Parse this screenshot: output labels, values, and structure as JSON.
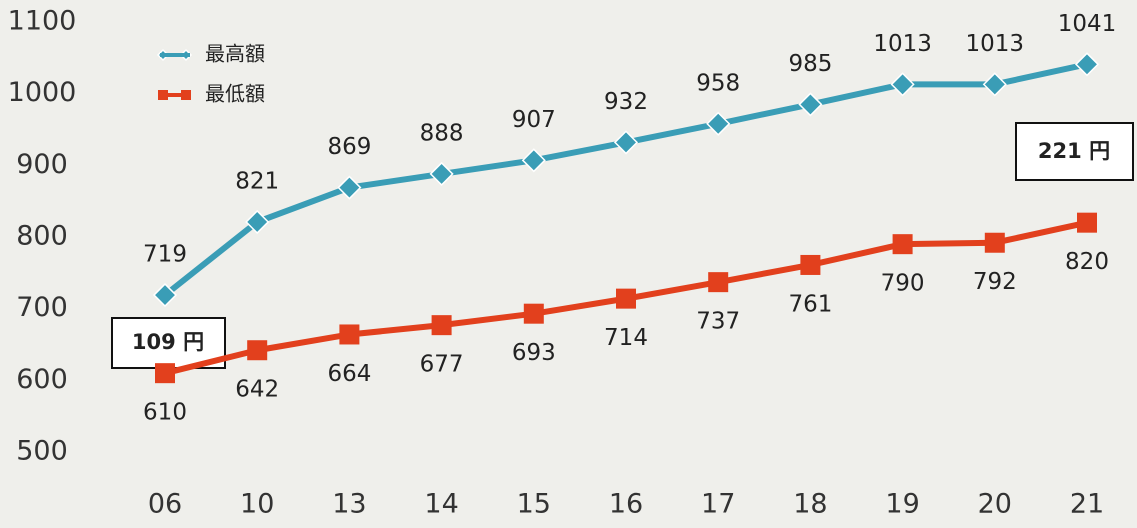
{
  "chart_data": {
    "type": "line",
    "categories": [
      "06",
      "10",
      "13",
      "14",
      "15",
      "16",
      "17",
      "18",
      "19",
      "20",
      "21"
    ],
    "series": [
      {
        "name": "最高額",
        "color": "#3a9db6",
        "marker": "diamond",
        "values": [
          719,
          821,
          869,
          888,
          907,
          932,
          958,
          985,
          1013,
          1013,
          1041
        ]
      },
      {
        "name": "最低額",
        "color": "#e2401d",
        "marker": "square",
        "values": [
          610,
          642,
          664,
          677,
          693,
          714,
          737,
          761,
          790,
          792,
          820
        ]
      }
    ],
    "ylim": [
      500,
      1100
    ],
    "yticks": [
      500,
      600,
      700,
      800,
      900,
      1000,
      1100
    ],
    "annotations": [
      "109 円",
      "221 円"
    ]
  }
}
